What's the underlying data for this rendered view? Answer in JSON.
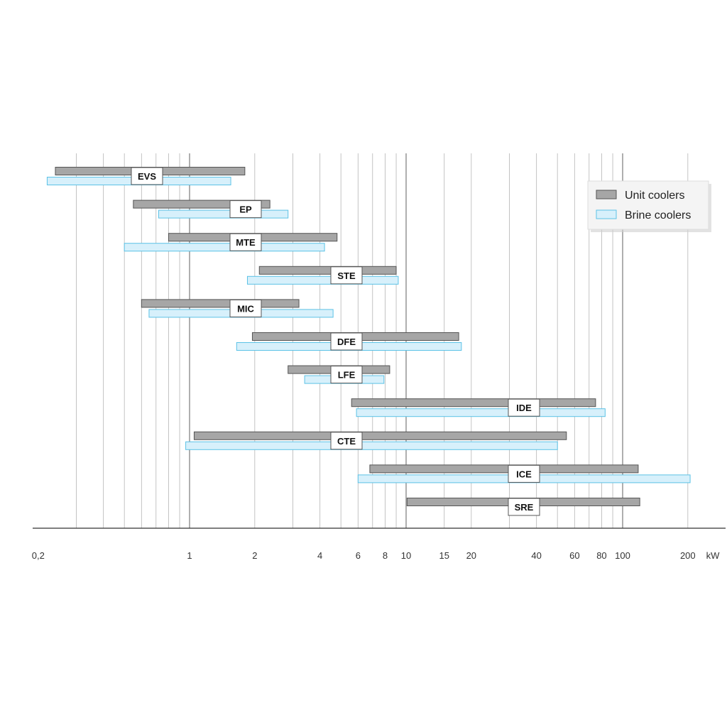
{
  "chart_data": {
    "type": "range-bar",
    "x_scale": "log",
    "xlim": [
      0.18,
      300
    ],
    "unit": "kW",
    "x_ticks": [
      0.2,
      1,
      2,
      4,
      6,
      8,
      10,
      15,
      20,
      40,
      60,
      80,
      100,
      200
    ],
    "x_tick_labels": [
      "0,2",
      "1",
      "2",
      "4",
      "6",
      "8",
      "10",
      "15",
      "20",
      "40",
      "60",
      "80",
      "100",
      "200"
    ],
    "gridlines": [
      0.3,
      0.4,
      0.5,
      0.6,
      0.7,
      0.8,
      0.9,
      1,
      2,
      3,
      4,
      5,
      6,
      7,
      8,
      9,
      10,
      15,
      20,
      30,
      40,
      50,
      60,
      70,
      80,
      90,
      100,
      200
    ],
    "legend": {
      "position": "top-right",
      "entries": [
        {
          "key": "unit",
          "name": "Unit coolers",
          "color": "#a6a6a6",
          "border": "#555555"
        },
        {
          "key": "brine",
          "name": "Brine coolers",
          "color": "#d7f0fb",
          "border": "#5cc2e6"
        }
      ]
    },
    "rows": [
      {
        "label": "EVS",
        "unit": [
          0.24,
          1.8
        ],
        "brine": [
          0.22,
          1.55
        ]
      },
      {
        "label": "EP",
        "unit": [
          0.55,
          2.35
        ],
        "brine": [
          0.72,
          2.85
        ]
      },
      {
        "label": "MTE",
        "unit": [
          0.8,
          4.8
        ],
        "brine": [
          0.5,
          4.2
        ]
      },
      {
        "label": "STE",
        "unit": [
          2.1,
          9.0
        ],
        "brine": [
          1.85,
          9.2
        ]
      },
      {
        "label": "MIC",
        "unit": [
          0.6,
          3.2
        ],
        "brine": [
          0.65,
          4.6
        ]
      },
      {
        "label": "DFE",
        "unit": [
          1.95,
          17.5
        ],
        "brine": [
          1.65,
          18.0
        ]
      },
      {
        "label": "LFE",
        "unit": [
          2.85,
          8.4
        ],
        "brine": [
          3.4,
          7.9
        ]
      },
      {
        "label": "IDE",
        "unit": [
          5.6,
          75.0
        ],
        "brine": [
          5.9,
          83.0
        ]
      },
      {
        "label": "CTE",
        "unit": [
          1.05,
          55.0
        ],
        "brine": [
          0.96,
          50.0
        ]
      },
      {
        "label": "ICE",
        "unit": [
          6.8,
          118.0
        ],
        "brine": [
          6.0,
          205.0
        ]
      },
      {
        "label": "SRE",
        "unit": [
          10.1,
          120.0
        ],
        "brine": null
      }
    ]
  }
}
